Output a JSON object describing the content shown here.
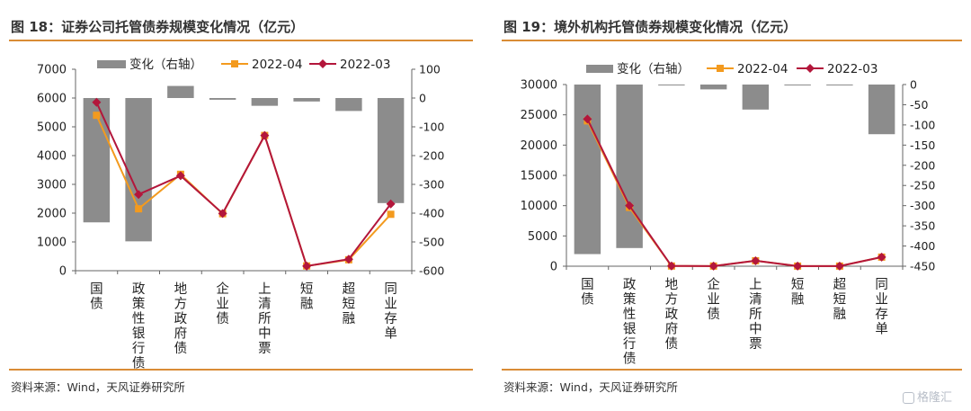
{
  "charts": [
    {
      "title": "图 18：证券公司托管债券规模变化情况（亿元）",
      "source": "资料来源：Wind，天风证券研究所"
    },
    {
      "title": "图 19：境外机构托管债券规模变化情况（亿元）",
      "source": "资料来源：Wind，天风证券研究所"
    }
  ],
  "watermark": "格隆汇",
  "chart_data": [
    {
      "type": "bar+line",
      "title": "图 18：证券公司托管债券规模变化情况（亿元）",
      "categories": [
        "国债",
        "政策性银行债",
        "地方政府债",
        "企业债",
        "上清所中票",
        "短融",
        "超短融",
        "同业存单"
      ],
      "y_left": {
        "lim": [
          0,
          7000
        ],
        "ticks": [
          0,
          1000,
          2000,
          3000,
          4000,
          5000,
          6000,
          7000
        ]
      },
      "y_right": {
        "lim": [
          -600,
          100
        ],
        "ticks": [
          -600,
          -500,
          -400,
          -300,
          -200,
          -100,
          0,
          100
        ]
      },
      "series": [
        {
          "name": "变化（右轴）",
          "kind": "bar",
          "axis": "right",
          "color": "#8c8c8c",
          "values": [
            -432,
            -498,
            42,
            -6,
            -27,
            -12,
            -45,
            -365
          ]
        },
        {
          "name": "2022-04",
          "kind": "line",
          "axis": "left",
          "color": "#f39a1e",
          "marker": "square",
          "values": [
            5400,
            2150,
            3350,
            1980,
            4700,
            165,
            380,
            1960
          ]
        },
        {
          "name": "2022-03",
          "kind": "line",
          "axis": "left",
          "color": "#b3163b",
          "marker": "diamond",
          "values": [
            5850,
            2650,
            3300,
            1990,
            4700,
            160,
            400,
            2320
          ]
        }
      ],
      "legend": "top",
      "grid": false
    },
    {
      "type": "bar+line",
      "title": "图 19：境外机构托管债券规模变化情况（亿元）",
      "categories": [
        "国债",
        "政策性银行债",
        "地方政府债",
        "企业债",
        "上清所中票",
        "短融",
        "超短融",
        "同业存单"
      ],
      "y_left": {
        "lim": [
          0,
          30000
        ],
        "ticks": [
          0,
          5000,
          10000,
          15000,
          20000,
          25000,
          30000
        ]
      },
      "y_right": {
        "lim": [
          -450,
          0
        ],
        "ticks": [
          -450,
          -400,
          -350,
          -300,
          -250,
          -200,
          -150,
          -100,
          -50,
          0
        ]
      },
      "series": [
        {
          "name": "变化（右轴）",
          "kind": "bar",
          "axis": "right",
          "color": "#8c8c8c",
          "values": [
            -420,
            -405,
            -1,
            -12,
            -62,
            -1,
            -1,
            -123
          ]
        },
        {
          "name": "2022-04",
          "kind": "line",
          "axis": "left",
          "color": "#f39a1e",
          "marker": "square",
          "values": [
            24000,
            9700,
            30,
            25,
            900,
            20,
            20,
            1500
          ]
        },
        {
          "name": "2022-03",
          "kind": "line",
          "axis": "left",
          "color": "#b3163b",
          "marker": "diamond",
          "values": [
            24300,
            10000,
            30,
            25,
            900,
            20,
            20,
            1500
          ]
        }
      ],
      "legend": "top",
      "grid": false
    }
  ]
}
